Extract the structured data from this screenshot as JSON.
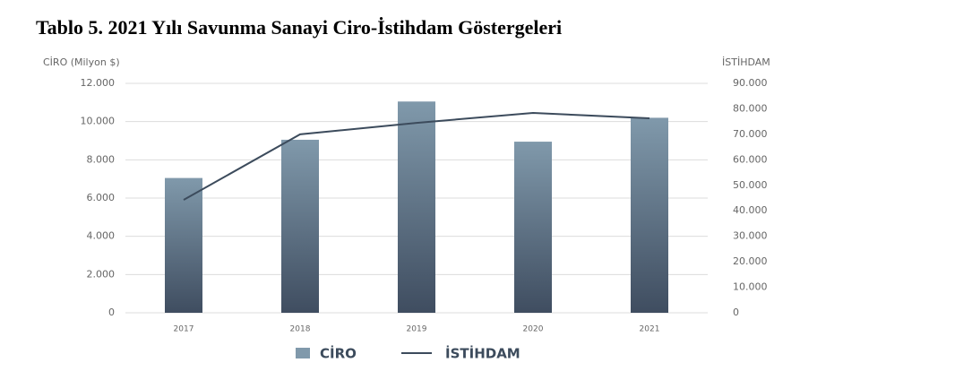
{
  "chart_data": {
    "type": "bar-line",
    "title": "Tablo 5. 2021 Yılı Savunma Sanayi Ciro-İstihdam Göstergeleri",
    "y_label": "CİRO (Milyon $)",
    "y2_label": "İSTİHDAM",
    "categories": [
      "2017",
      "2018",
      "2019",
      "2020",
      "2021"
    ],
    "series": [
      {
        "name": "CİRO",
        "type": "bar",
        "color": "#8099ab",
        "values": [
          7050,
          9050,
          11050,
          8950,
          10200
        ]
      },
      {
        "name": "İSTİHDAM",
        "type": "line",
        "axis": "y2",
        "color": "#3c4b5c",
        "values": [
          44300,
          70000,
          74500,
          78400,
          76300
        ]
      }
    ],
    "ylim": [
      0,
      12000
    ],
    "yticks": [
      0,
      {
        "value": 2000,
        "label": "2.000"
      },
      {
        "value": 4000,
        "label": "4.000"
      },
      {
        "value": 6000,
        "label": "6.000"
      },
      {
        "value": 8000,
        "label": "8.000"
      },
      {
        "value": 10000,
        "label": "10.000"
      },
      {
        "value": 12000,
        "label": "12.000"
      }
    ],
    "y2lim": [
      0,
      90000
    ],
    "y2ticks": [
      0,
      {
        "value": 10000,
        "label": "10.000"
      },
      {
        "value": 20000,
        "label": "20.000"
      },
      {
        "value": 30000,
        "label": "30.000"
      },
      {
        "value": 40000,
        "label": "40.000"
      },
      {
        "value": 50000,
        "label": "50.000"
      },
      {
        "value": 60000,
        "label": "60.000"
      },
      {
        "value": 70000,
        "label": "70.000"
      },
      {
        "value": 80000,
        "label": "80.000"
      },
      {
        "value": 90000,
        "label": "90.000"
      }
    ],
    "grid": true
  }
}
